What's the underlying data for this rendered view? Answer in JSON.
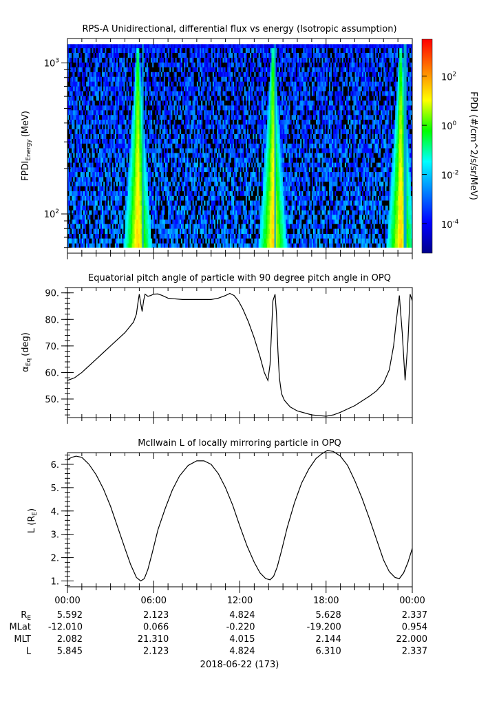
{
  "chart_data": [
    {
      "type": "heatmap",
      "title": "RPS-A Unidirectional, differential flux vs energy (Isotropic assumption)",
      "ylabel": "FPDI",
      "ylabel_sub": "Energy",
      "ylabel_unit": "(MeV)",
      "yscale": "log",
      "ylim": [
        55,
        1450
      ],
      "yticks": [
        {
          "value": 100,
          "base": "10",
          "exp": "2"
        },
        {
          "value": 1000,
          "base": "10",
          "exp": "3"
        }
      ],
      "energy_bins": [
        60,
        64,
        69,
        74,
        80,
        86,
        92,
        99,
        106,
        114,
        123,
        132,
        142,
        153,
        164,
        176,
        190,
        204,
        219,
        236,
        254,
        273,
        293,
        315,
        339,
        365,
        392,
        422,
        453,
        487,
        524,
        564,
        606,
        652,
        701,
        754,
        811,
        872,
        938,
        1009,
        1085,
        1167,
        1255,
        1330
      ],
      "colorbar": {
        "label": "FPDI (#/cm^2/s/sr/MeV)",
        "scale": "log",
        "range": [
          -5.2,
          3.5
        ],
        "ticks": [
          {
            "value": 2,
            "base": "10",
            "exp": "2"
          },
          {
            "value": 0,
            "base": "10",
            "exp": "0"
          },
          {
            "value": -2,
            "base": "10",
            "exp": "-2"
          },
          {
            "value": -4,
            "base": "10",
            "exp": "-4"
          }
        ],
        "colors": [
          "#00008b",
          "#0000ff",
          "#0080ff",
          "#00ffff",
          "#00ff00",
          "#ffff00",
          "#ff8000",
          "#ff0000"
        ]
      },
      "belt_passes_hours": [
        4.9,
        14.3,
        23.2
      ],
      "data_gaps_hours": [
        5.27,
        14.45,
        23.5
      ],
      "background_log_flux": [
        -4.5,
        -2.5
      ],
      "xlim_hours": [
        0,
        24
      ]
    },
    {
      "type": "line",
      "title": "Equatorial pitch angle of particle with 90 degree pitch angle in OPQ",
      "ylabel": "α",
      "ylabel_sub": "Eq",
      "ylabel_unit": "(deg)",
      "ylim": [
        43,
        92
      ],
      "yticks": [
        "50.",
        "60.",
        "70.",
        "80.",
        "90."
      ],
      "x_hours": [
        0,
        0.5,
        1,
        1.5,
        2,
        2.5,
        3,
        3.5,
        4,
        4.3,
        4.6,
        4.8,
        4.9,
        5.0,
        5.1,
        5.2,
        5.3,
        5.4,
        5.6,
        5.8,
        6,
        6.3,
        6.6,
        7,
        8,
        9,
        10,
        10.5,
        11,
        11.3,
        11.6,
        11.9,
        12.2,
        12.6,
        13,
        13.4,
        13.7,
        13.95,
        14.1,
        14.3,
        14.45,
        14.55,
        14.65,
        14.75,
        14.9,
        15.1,
        15.5,
        16,
        17,
        18,
        18.5,
        19,
        20,
        21,
        21.5,
        22,
        22.4,
        22.7,
        22.9,
        23.1,
        23.3,
        23.5,
        23.7,
        23.85,
        24
      ],
      "y_deg": [
        57,
        58,
        60,
        62.5,
        65,
        67.5,
        70,
        72.5,
        75,
        77,
        79,
        82,
        86,
        89.5,
        86,
        83,
        87,
        89.5,
        88.7,
        89,
        89.5,
        89.6,
        89,
        88,
        87.5,
        87.5,
        87.5,
        88,
        89,
        89.8,
        89,
        87,
        84,
        79,
        73,
        66,
        60,
        57,
        63,
        87,
        89.5,
        82,
        68,
        58,
        52,
        49.5,
        47,
        45.5,
        44,
        43.5,
        44,
        45,
        47.5,
        51,
        53,
        56,
        61,
        70,
        80,
        89,
        75,
        57,
        72,
        89.5,
        87
      ]
    },
    {
      "type": "line",
      "title": "McIlwain L of locally mirroring particle in OPQ",
      "ylabel": "L (R",
      "ylabel_sub": "E",
      "ylabel_unit": ")",
      "ylim": [
        0.75,
        6.5
      ],
      "yticks": [
        "1.",
        "2.",
        "3.",
        "4.",
        "5.",
        "6."
      ],
      "x_hours": [
        0,
        0.3,
        0.6,
        1,
        1.5,
        2,
        2.5,
        3,
        3.5,
        4,
        4.4,
        4.8,
        5.1,
        5.35,
        5.6,
        5.9,
        6.3,
        6.8,
        7.3,
        7.8,
        8.4,
        9,
        9.5,
        10,
        10.5,
        11,
        11.5,
        12,
        12.5,
        13,
        13.4,
        13.8,
        14.1,
        14.35,
        14.6,
        14.9,
        15.3,
        15.8,
        16.3,
        16.8,
        17.3,
        17.7,
        18.1,
        18.5,
        19,
        19.5,
        20,
        20.5,
        21,
        21.5,
        22,
        22.4,
        22.8,
        23.1,
        23.4,
        23.7,
        24
      ],
      "y_L": [
        6.2,
        6.3,
        6.35,
        6.3,
        6.0,
        5.55,
        4.95,
        4.2,
        3.3,
        2.4,
        1.7,
        1.15,
        1.0,
        1.1,
        1.5,
        2.2,
        3.2,
        4.1,
        4.9,
        5.5,
        5.95,
        6.15,
        6.15,
        6.0,
        5.6,
        5.0,
        4.25,
        3.35,
        2.5,
        1.8,
        1.35,
        1.1,
        1.05,
        1.2,
        1.6,
        2.3,
        3.3,
        4.35,
        5.2,
        5.8,
        6.25,
        6.45,
        6.6,
        6.55,
        6.35,
        5.95,
        5.3,
        4.55,
        3.7,
        2.8,
        1.9,
        1.4,
        1.15,
        1.1,
        1.35,
        1.8,
        2.4
      ]
    }
  ],
  "time_axis": {
    "tick_labels": [
      "00:00",
      "06:00",
      "12:00",
      "18:00",
      "00:00"
    ],
    "xlabel": "2018-06-22 (173)"
  },
  "ephemeris": {
    "rows": [
      {
        "label": "R",
        "sub": "E",
        "values": [
          "5.592",
          "2.123",
          "4.824",
          "5.628",
          "2.337"
        ]
      },
      {
        "label": "MLat",
        "sub": "",
        "values": [
          "-12.010",
          "0.066",
          "-0.220",
          "-19.200",
          "0.954"
        ]
      },
      {
        "label": "MLT",
        "sub": "",
        "values": [
          "2.082",
          "21.310",
          "4.015",
          "2.144",
          "22.000"
        ]
      },
      {
        "label": "L",
        "sub": "",
        "values": [
          "5.845",
          "2.123",
          "4.824",
          "6.310",
          "2.337"
        ]
      }
    ]
  }
}
